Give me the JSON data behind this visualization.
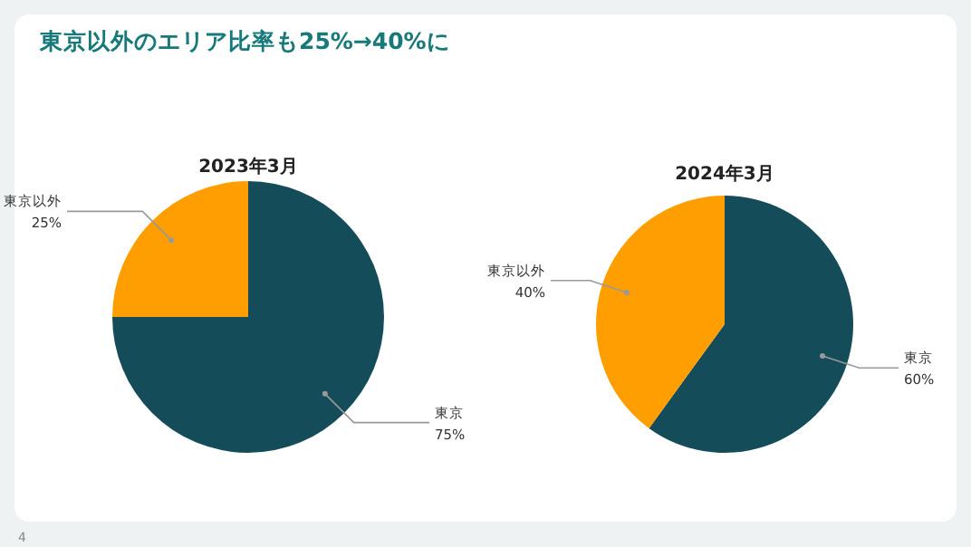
{
  "chart_data": [
    {
      "type": "other",
      "title": "東京以外のエリア比率も25%→40%に",
      "annotations": [
        "4"
      ]
    },
    {
      "type": "pie",
      "title": "2023年3月",
      "categories": [
        "東京",
        "東京以外"
      ],
      "values": [
        75,
        25
      ],
      "colors": [
        "#144d59",
        "#ff9e00"
      ],
      "value_labels": [
        "75%",
        "25%"
      ]
    },
    {
      "type": "pie",
      "title": "2024年3月",
      "categories": [
        "東京",
        "東京以外"
      ],
      "values": [
        60,
        40
      ],
      "colors": [
        "#144d59",
        "#ff9e00"
      ],
      "value_labels": [
        "60%",
        "40%"
      ]
    }
  ]
}
